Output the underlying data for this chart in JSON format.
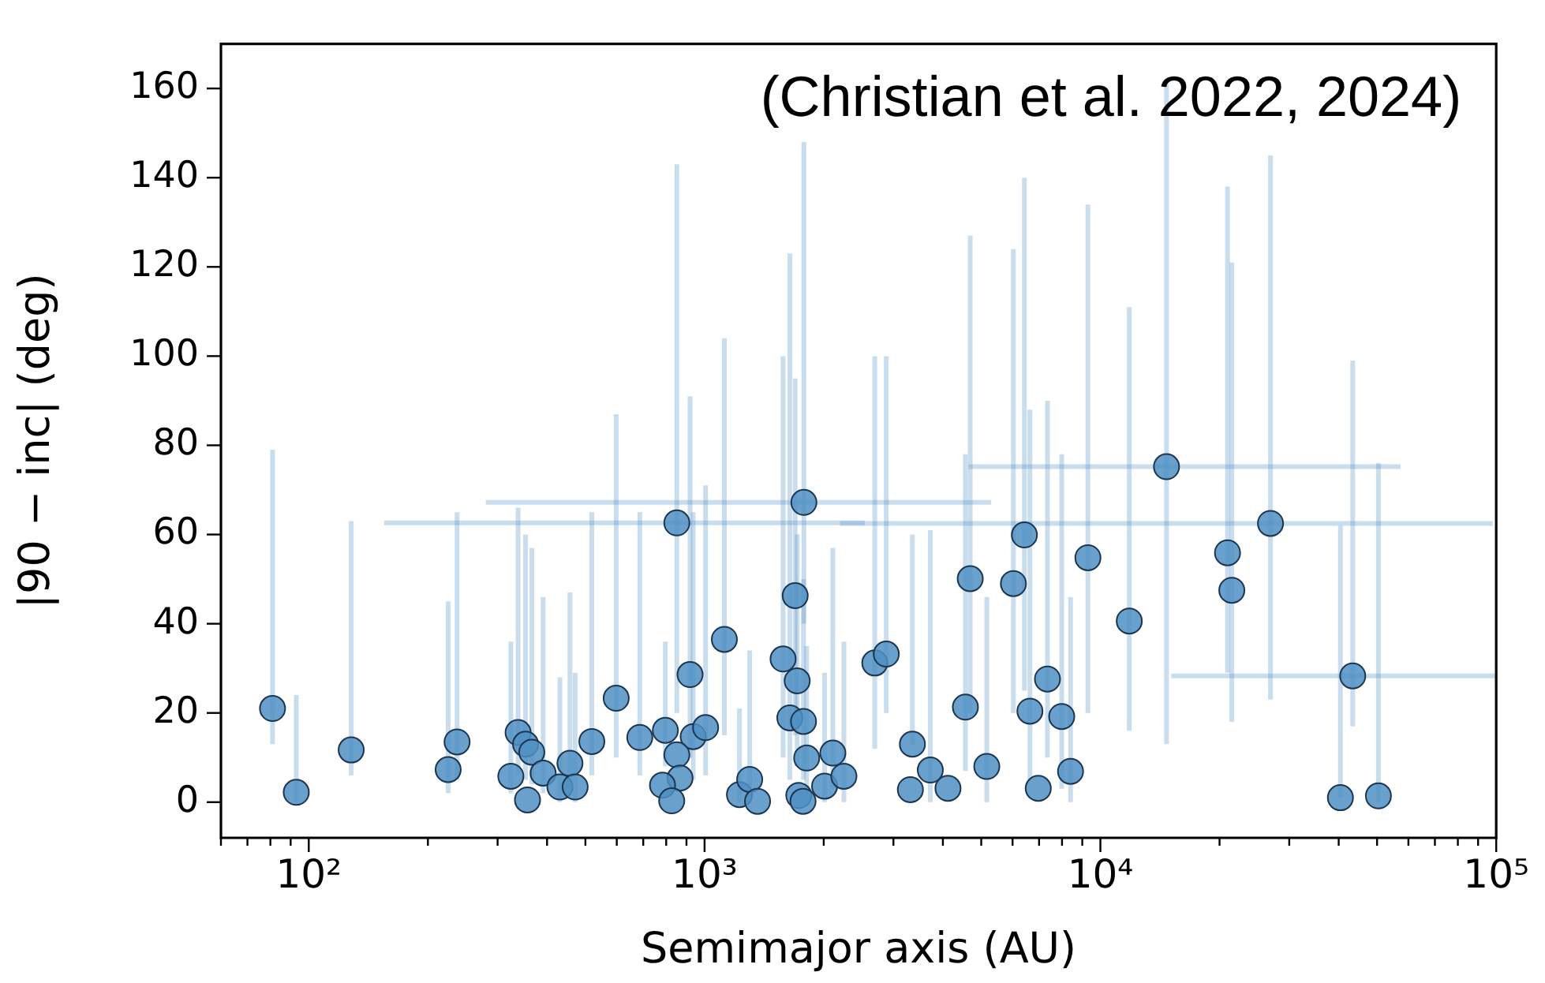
{
  "chart_data": {
    "type": "scatter",
    "xlabel": "Semimajor axis (AU)",
    "ylabel": "|90 − inc| (deg)",
    "annotations": [
      "(Christian et al. 2022, 2024)"
    ],
    "log": "x",
    "marker": "circle",
    "color": "#4f8fc3",
    "x": [
      81,
      93,
      128,
      225,
      237,
      324,
      338,
      353,
      366,
      357,
      391,
      431,
      457,
      471,
      519,
      598,
      686,
      796,
      851,
      919,
      936,
      1006,
      851,
      867,
      783,
      826,
      1122,
      1225,
      1300,
      1361,
      1579,
      1642,
      1782,
      1694,
      1714,
      1778,
      1811,
      1730,
      1773,
      2010,
      2109,
      2249,
      2692,
      2878,
      3350,
      3311,
      3718,
      4121,
      4560,
      4690,
      5164,
      6029,
      6427,
      6637,
      7350,
      6967,
      7985,
      8406,
      9300,
      11830,
      14690,
      20950,
      21480,
      26900,
      43400,
      40400,
      50400
    ],
    "values": [
      21,
      2.2,
      11.7,
      7.3,
      13.5,
      5.8,
      15.6,
      13,
      11.2,
      0.5,
      6.5,
      3.4,
      8.7,
      3.4,
      13.6,
      23.3,
      14.5,
      16.1,
      62.6,
      28.6,
      14.7,
      16.7,
      10.6,
      5.4,
      3.8,
      0.3,
      36.5,
      1.7,
      5.1,
      0.2,
      32.1,
      18.9,
      67.2,
      46.3,
      27.2,
      18.1,
      9.9,
      1.5,
      0.2,
      3.6,
      11,
      5.8,
      31.2,
      33.2,
      13,
      2.8,
      7.2,
      3.1,
      21.3,
      50.1,
      8,
      49,
      59.9,
      20.4,
      27.6,
      3.1,
      19.2,
      6.9,
      54.8,
      40.6,
      75.2,
      55.9,
      47.5,
      62.5,
      28.3,
      1,
      1.4
    ],
    "errors": [
      [
        13,
        79
      ],
      [
        0,
        24
      ],
      [
        6,
        63
      ],
      [
        2,
        45
      ],
      [
        5,
        65
      ],
      [
        2,
        36
      ],
      [
        6,
        66
      ],
      [
        5,
        60
      ],
      [
        4,
        57
      ],
      null,
      [
        2,
        46
      ],
      [
        0,
        28
      ],
      [
        3,
        47
      ],
      [
        0,
        29
      ],
      [
        6,
        65
      ],
      [
        10,
        87
      ],
      [
        6,
        65
      ],
      [
        8,
        36
      ],
      [
        20,
        143
      ],
      [
        10,
        91
      ],
      [
        5,
        65
      ],
      [
        6,
        71
      ],
      null,
      null,
      null,
      null,
      [
        15,
        104
      ],
      [
        0,
        21
      ],
      [
        0,
        34
      ],
      null,
      [
        10,
        100
      ],
      [
        5,
        123
      ],
      [
        40,
        148
      ],
      [
        15,
        95
      ],
      [
        8,
        60
      ],
      [
        5,
        50
      ],
      [
        2,
        35
      ],
      null,
      null,
      [
        0,
        29
      ],
      [
        3,
        57
      ],
      [
        0,
        36
      ],
      [
        12,
        100
      ],
      [
        20,
        100
      ],
      [
        13,
        60
      ],
      null,
      [
        0,
        61
      ],
      null,
      [
        7,
        78
      ],
      [
        20,
        127
      ],
      [
        0,
        46
      ],
      [
        20,
        124
      ],
      [
        25,
        140
      ],
      [
        5,
        88
      ],
      [
        10,
        90
      ],
      null,
      [
        3,
        78
      ],
      [
        0,
        46
      ],
      [
        20,
        134
      ],
      [
        16,
        111
      ],
      [
        13,
        161
      ],
      [
        29,
        138
      ],
      [
        18,
        121
      ],
      [
        23,
        145
      ],
      [
        17,
        99
      ],
      [
        1,
        62
      ],
      [
        0,
        76
      ]
    ],
    "xerrors": [
      null,
      null,
      null,
      null,
      null,
      null,
      null,
      null,
      null,
      null,
      null,
      null,
      null,
      null,
      null,
      null,
      null,
      null,
      [
        155,
        2540
      ],
      null,
      null,
      null,
      null,
      null,
      null,
      null,
      null,
      null,
      null,
      null,
      null,
      null,
      [
        280,
        5300
      ],
      null,
      null,
      null,
      null,
      null,
      null,
      null,
      null,
      null,
      null,
      null,
      null,
      null,
      null,
      null,
      null,
      null,
      null,
      null,
      null,
      null,
      null,
      null,
      null,
      null,
      null,
      null,
      [
        4640,
        57300
      ],
      null,
      null,
      [
        2200,
        98000
      ],
      [
        15100,
        100000
      ],
      null,
      null
    ],
    "xlim": [
      60,
      100000
    ],
    "xticks": [
      {
        "value": 60,
        "label": null
      },
      {
        "value": 70,
        "label": null
      },
      {
        "value": 80,
        "label": null
      },
      {
        "value": 90,
        "label": null
      },
      {
        "value": 100,
        "label": "10²"
      },
      {
        "value": 200,
        "label": null
      },
      {
        "value": 300,
        "label": null
      },
      {
        "value": 400,
        "label": null
      },
      {
        "value": 500,
        "label": null
      },
      {
        "value": 600,
        "label": null
      },
      {
        "value": 700,
        "label": null
      },
      {
        "value": 800,
        "label": null
      },
      {
        "value": 900,
        "label": null
      },
      {
        "value": 1000,
        "label": "10³"
      },
      {
        "value": 2000,
        "label": null
      },
      {
        "value": 3000,
        "label": null
      },
      {
        "value": 4000,
        "label": null
      },
      {
        "value": 5000,
        "label": null
      },
      {
        "value": 6000,
        "label": null
      },
      {
        "value": 7000,
        "label": null
      },
      {
        "value": 8000,
        "label": null
      },
      {
        "value": 9000,
        "label": null
      },
      {
        "value": 10000,
        "label": "10⁴"
      },
      {
        "value": 20000,
        "label": null
      },
      {
        "value": 30000,
        "label": null
      },
      {
        "value": 40000,
        "label": null
      },
      {
        "value": 50000,
        "label": null
      },
      {
        "value": 60000,
        "label": null
      },
      {
        "value": 70000,
        "label": null
      },
      {
        "value": 80000,
        "label": null
      },
      {
        "value": 90000,
        "label": null
      },
      {
        "value": 100000,
        "label": "10⁵"
      }
    ],
    "ylim": [
      -8,
      170
    ],
    "yticks": [
      0,
      20,
      40,
      60,
      80,
      100,
      120,
      140,
      160
    ]
  }
}
